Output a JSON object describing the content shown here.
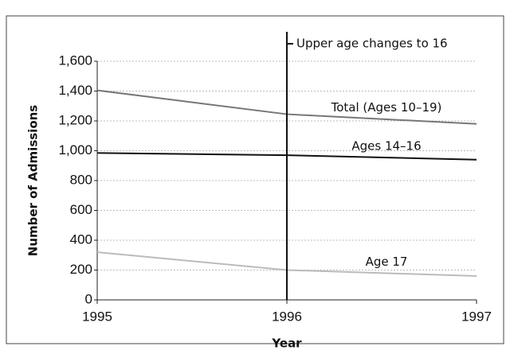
{
  "chart_data": {
    "type": "line",
    "x": [
      1995,
      1996,
      1997
    ],
    "xlim": [
      1995,
      1997
    ],
    "xticks": [
      1995,
      1996,
      1997
    ],
    "ylim": [
      0,
      1600
    ],
    "yticks": [
      0,
      200,
      400,
      600,
      800,
      {
        "value": 1000,
        "label": "1,000"
      },
      {
        "value": 1200,
        "label": "1,200"
      },
      {
        "value": 1400,
        "label": "1,400"
      },
      {
        "value": 1600,
        "label": "1,600"
      }
    ],
    "xlabel": "Year",
    "ylabel": "Number of Admissions",
    "grid": true,
    "series": [
      {
        "name": "Total (Ages 10–19)",
        "color": "#777777",
        "values": [
          1405,
          1245,
          1180
        ]
      },
      {
        "name": "Ages 14–16",
        "color": "#111111",
        "values": [
          985,
          970,
          940
        ]
      },
      {
        "name": "Age 17",
        "color": "#bbbbbb",
        "values": [
          320,
          200,
          160
        ]
      }
    ],
    "annotation": {
      "text": "Upper age changes to 16",
      "x": 1996
    }
  }
}
